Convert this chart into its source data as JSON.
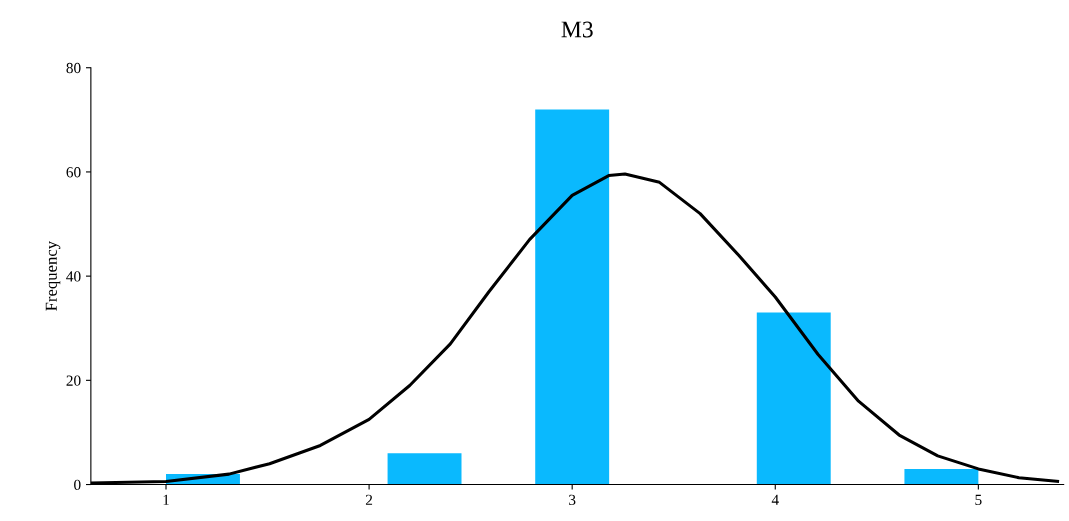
{
  "chart_data": {
    "type": "histogram",
    "title": "M3",
    "ylabel": "Frequency",
    "bins": [
      1,
      1.364,
      1.727,
      2.091,
      2.455,
      2.818,
      3.182,
      3.545,
      3.909,
      4.273,
      4.636,
      5
    ],
    "values": [
      2,
      0,
      0,
      6,
      0,
      72,
      0,
      0,
      33,
      0,
      3
    ],
    "color": "#0ab9fe",
    "series": [
      {
        "type": "line",
        "color": "#000000",
        "x": [
          0.63,
          1.0,
          1.31,
          1.51,
          1.76,
          2.0,
          2.2,
          2.4,
          2.59,
          2.79,
          3.0,
          3.18,
          3.26,
          3.43,
          3.63,
          3.82,
          4.0,
          4.21,
          4.41,
          4.61,
          4.8,
          5.0,
          5.2,
          5.39
        ],
        "values": [
          0.3,
          0.6,
          2,
          4,
          7.5,
          12.5,
          19,
          27,
          37,
          47,
          55.5,
          59.3,
          59.6,
          58,
          52,
          44,
          36,
          25,
          16,
          9.5,
          5.5,
          3,
          1.3,
          0.6
        ]
      }
    ],
    "xlim": [
      0.63,
      5.42
    ],
    "xticks": [
      1,
      2,
      3,
      4,
      5
    ],
    "ylim": [
      0,
      80
    ],
    "yticks": [
      0,
      20,
      40,
      60,
      80
    ],
    "grid": false,
    "legend": false
  }
}
